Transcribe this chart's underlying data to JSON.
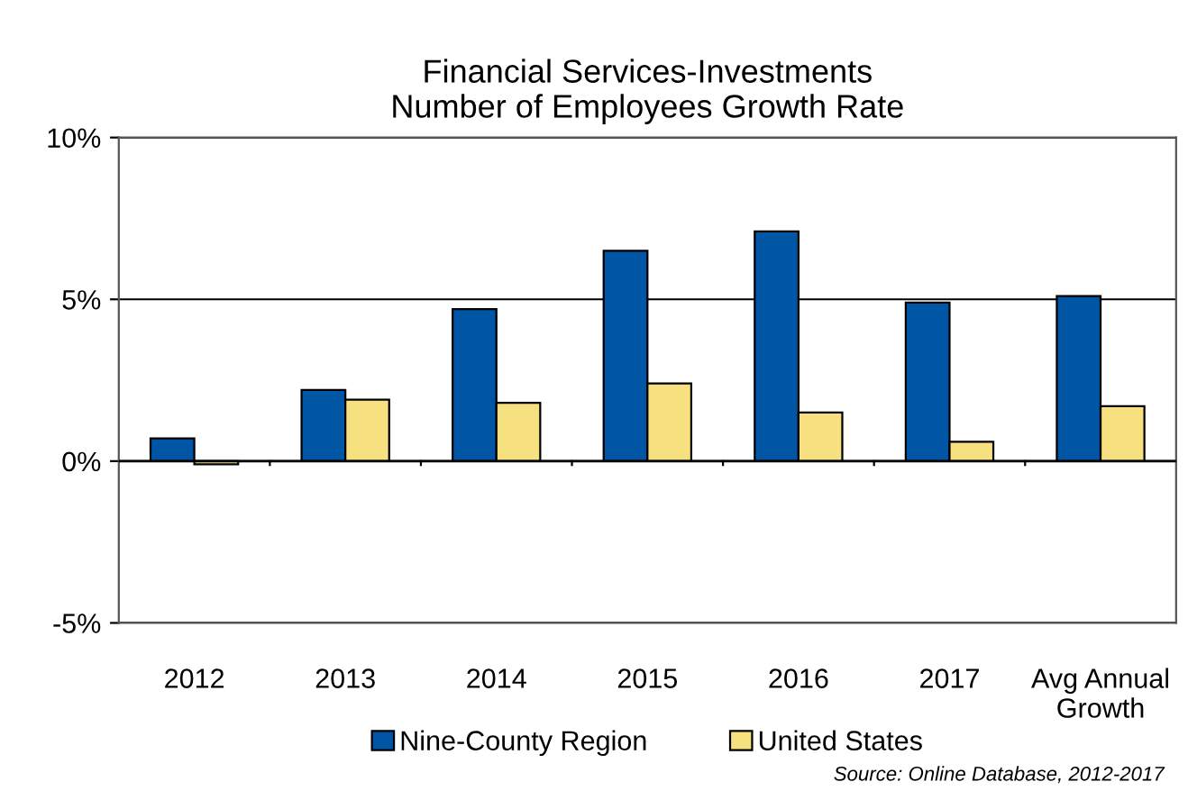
{
  "chart_data": {
    "type": "bar",
    "title": "Financial Services-Investments\nNumber of Employees Growth Rate",
    "categories": [
      "2012",
      "2013",
      "2014",
      "2015",
      "2016",
      "2017",
      "Avg Annual\nGrowth"
    ],
    "series": [
      {
        "name": "Nine-County Region",
        "color": "#0055a5",
        "values": [
          0.7,
          2.2,
          4.7,
          6.5,
          7.1,
          4.9,
          5.1
        ]
      },
      {
        "name": "United States",
        "color": "#f7e080",
        "values": [
          -0.1,
          1.9,
          1.8,
          2.4,
          1.5,
          0.6,
          1.7
        ]
      }
    ],
    "ylim": [
      -5,
      10
    ],
    "yticks": [
      {
        "value": -5,
        "label": "-5%"
      },
      {
        "value": 0,
        "label": "0%"
      },
      {
        "value": 5,
        "label": "5%"
      },
      {
        "value": 10,
        "label": "10%"
      }
    ],
    "grid": "y",
    "legend": "bottom",
    "annotations": [
      "Source: Online Database, 2012-2017"
    ]
  }
}
